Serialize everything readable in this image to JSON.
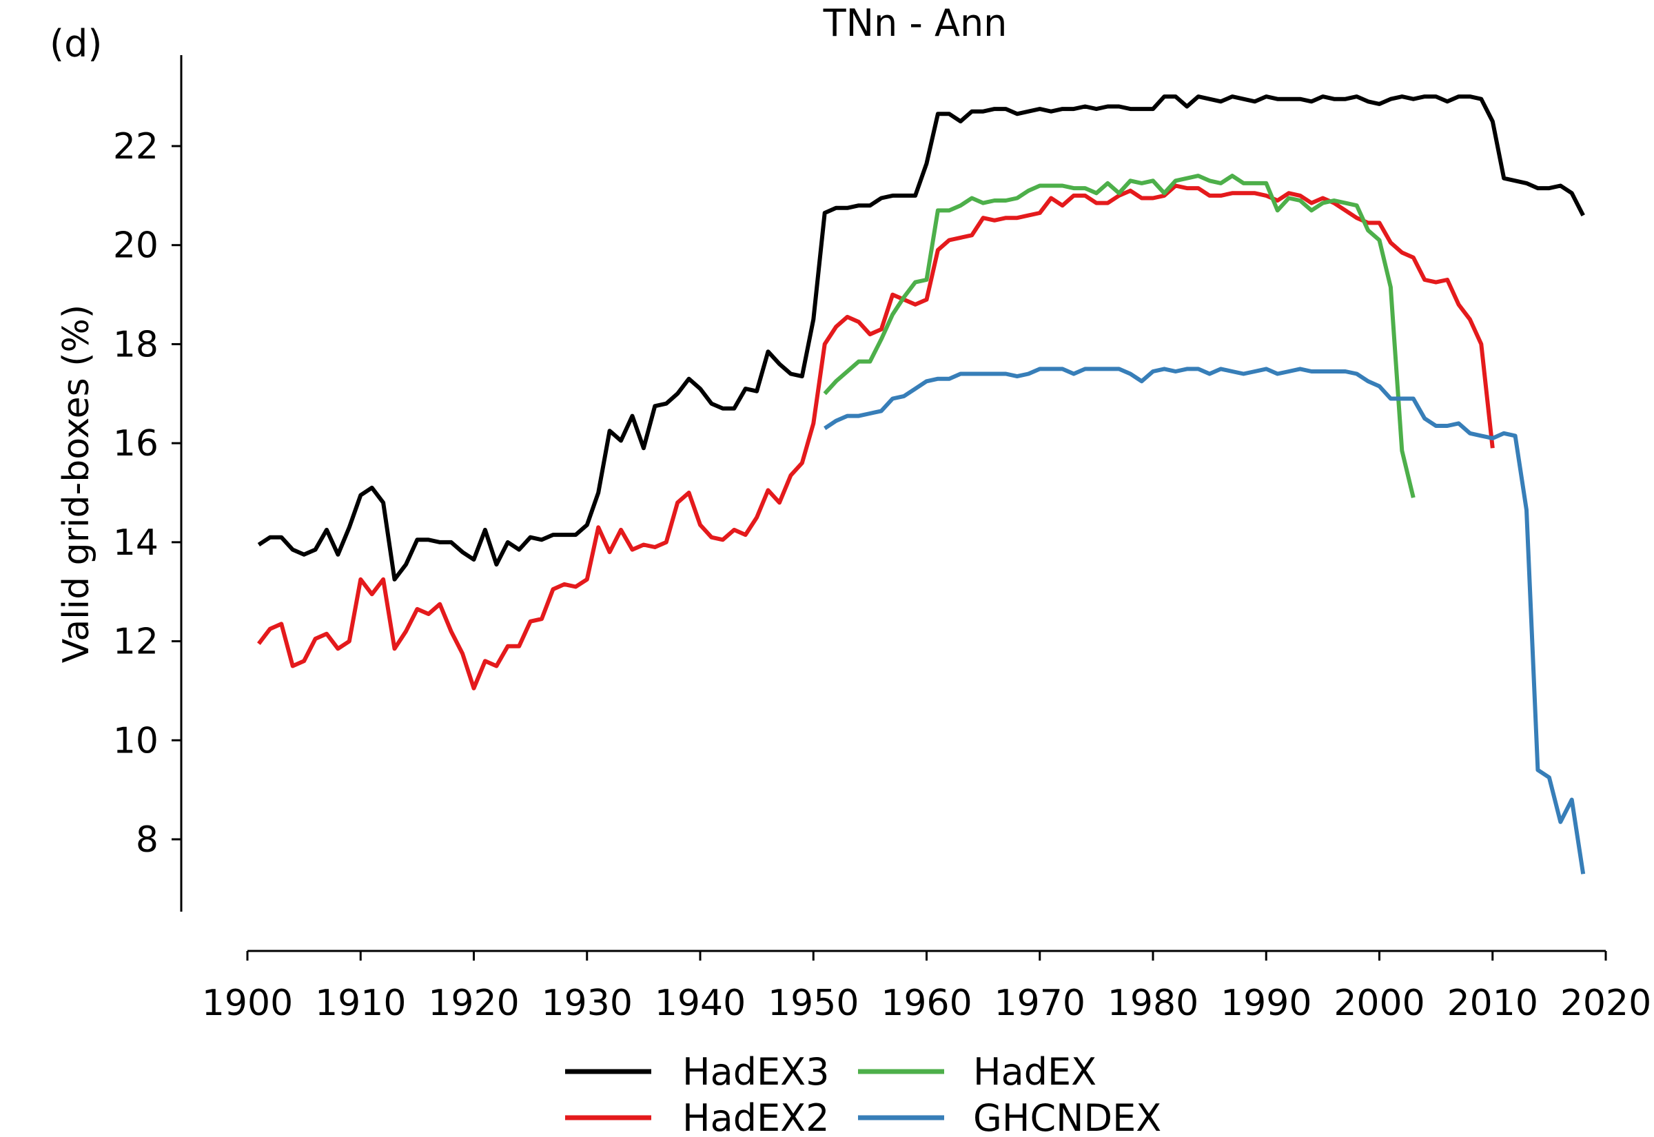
{
  "chart_data": {
    "type": "line",
    "title": "TNn - Ann",
    "panel_label": "(d)",
    "xlabel": "",
    "ylabel": "Valid grid-boxes (%)",
    "xlim": [
      1900,
      2020
    ],
    "ylim": [
      7,
      24.3
    ],
    "xticks": [
      1900,
      1910,
      1920,
      1930,
      1940,
      1950,
      1960,
      1970,
      1980,
      1990,
      2000,
      2010,
      2020
    ],
    "yticks": [
      8,
      10,
      12,
      14,
      16,
      18,
      20,
      22
    ],
    "grid": false,
    "legend_position": "bottom-center",
    "series": [
      {
        "name": "HadEX3",
        "color": "#000000",
        "x": [
          1901,
          1902,
          1903,
          1904,
          1905,
          1906,
          1907,
          1908,
          1909,
          1910,
          1911,
          1912,
          1913,
          1914,
          1915,
          1916,
          1917,
          1918,
          1919,
          1920,
          1921,
          1922,
          1923,
          1924,
          1925,
          1926,
          1927,
          1928,
          1929,
          1930,
          1931,
          1932,
          1933,
          1934,
          1935,
          1936,
          1937,
          1938,
          1939,
          1940,
          1941,
          1942,
          1943,
          1944,
          1945,
          1946,
          1947,
          1948,
          1949,
          1950,
          1951,
          1952,
          1953,
          1954,
          1955,
          1956,
          1957,
          1958,
          1959,
          1960,
          1961,
          1962,
          1963,
          1964,
          1965,
          1966,
          1967,
          1968,
          1969,
          1970,
          1971,
          1972,
          1973,
          1974,
          1975,
          1976,
          1977,
          1978,
          1979,
          1980,
          1981,
          1982,
          1983,
          1984,
          1985,
          1986,
          1987,
          1988,
          1989,
          1990,
          1991,
          1992,
          1993,
          1994,
          1995,
          1996,
          1997,
          1998,
          1999,
          2000,
          2001,
          2002,
          2003,
          2004,
          2005,
          2006,
          2007,
          2008,
          2009,
          2010,
          2011,
          2012,
          2013,
          2014,
          2015,
          2016,
          2017,
          2018
        ],
        "y": [
          13.95,
          14.1,
          14.1,
          13.85,
          13.75,
          13.85,
          14.25,
          13.75,
          14.3,
          14.95,
          15.1,
          14.8,
          13.25,
          13.55,
          14.05,
          14.05,
          14.0,
          14.0,
          13.8,
          13.65,
          14.25,
          13.55,
          14.0,
          13.85,
          14.1,
          14.05,
          14.15,
          14.15,
          14.15,
          14.35,
          15.0,
          16.25,
          16.05,
          16.55,
          15.9,
          16.75,
          16.8,
          17.0,
          17.3,
          17.1,
          16.8,
          16.7,
          16.7,
          17.1,
          17.05,
          17.85,
          17.6,
          17.4,
          17.35,
          18.5,
          20.65,
          20.75,
          20.75,
          20.8,
          20.8,
          20.95,
          21.0,
          21.0,
          21.0,
          21.65,
          22.65,
          22.65,
          22.5,
          22.7,
          22.7,
          22.75,
          22.75,
          22.65,
          22.7,
          22.75,
          22.7,
          22.75,
          22.75,
          22.8,
          22.75,
          22.8,
          22.8,
          22.75,
          22.75,
          22.75,
          23.0,
          23.0,
          22.8,
          23.0,
          22.95,
          22.9,
          23.0,
          22.95,
          22.9,
          23.0,
          22.95,
          22.95,
          22.95,
          22.9,
          23.0,
          22.95,
          22.95,
          23.0,
          22.9,
          22.85,
          22.95,
          23.0,
          22.95,
          23.0,
          23.0,
          22.9,
          23.0,
          23.0,
          22.95,
          22.5,
          21.35,
          21.3,
          21.25,
          21.15,
          21.15,
          21.2,
          21.05,
          20.6
        ]
      },
      {
        "name": "HadEX2",
        "color": "#e41a1c",
        "x": [
          1901,
          1902,
          1903,
          1904,
          1905,
          1906,
          1907,
          1908,
          1909,
          1910,
          1911,
          1912,
          1913,
          1914,
          1915,
          1916,
          1917,
          1918,
          1919,
          1920,
          1921,
          1922,
          1923,
          1924,
          1925,
          1926,
          1927,
          1928,
          1929,
          1930,
          1931,
          1932,
          1933,
          1934,
          1935,
          1936,
          1937,
          1938,
          1939,
          1940,
          1941,
          1942,
          1943,
          1944,
          1945,
          1946,
          1947,
          1948,
          1949,
          1950,
          1951,
          1952,
          1953,
          1954,
          1955,
          1956,
          1957,
          1958,
          1959,
          1960,
          1961,
          1962,
          1963,
          1964,
          1965,
          1966,
          1967,
          1968,
          1969,
          1970,
          1971,
          1972,
          1973,
          1974,
          1975,
          1976,
          1977,
          1978,
          1979,
          1980,
          1981,
          1982,
          1983,
          1984,
          1985,
          1986,
          1987,
          1988,
          1989,
          1990,
          1991,
          1992,
          1993,
          1994,
          1995,
          1996,
          1997,
          1998,
          1999,
          2000,
          2001,
          2002,
          2003,
          2004,
          2005,
          2006,
          2007,
          2008,
          2009,
          2010
        ],
        "y": [
          11.95,
          12.25,
          12.35,
          11.5,
          11.6,
          12.05,
          12.15,
          11.85,
          12.0,
          13.25,
          12.95,
          13.25,
          11.85,
          12.2,
          12.65,
          12.55,
          12.75,
          12.2,
          11.75,
          11.05,
          11.6,
          11.5,
          11.9,
          11.9,
          12.4,
          12.45,
          13.05,
          13.15,
          13.1,
          13.25,
          14.3,
          13.8,
          14.25,
          13.85,
          13.95,
          13.9,
          14.0,
          14.8,
          15.0,
          14.35,
          14.1,
          14.05,
          14.25,
          14.15,
          14.5,
          15.05,
          14.8,
          15.35,
          15.6,
          16.4,
          18.0,
          18.35,
          18.55,
          18.45,
          18.2,
          18.3,
          19.0,
          18.9,
          18.8,
          18.9,
          19.9,
          20.1,
          20.15,
          20.2,
          20.55,
          20.5,
          20.55,
          20.55,
          20.6,
          20.65,
          20.95,
          20.8,
          21.0,
          21.0,
          20.85,
          20.85,
          21.0,
          21.1,
          20.95,
          20.95,
          21.0,
          21.2,
          21.15,
          21.15,
          21.0,
          21.0,
          21.05,
          21.05,
          21.05,
          21.0,
          20.9,
          21.05,
          21.0,
          20.85,
          20.95,
          20.85,
          20.7,
          20.55,
          20.45,
          20.45,
          20.05,
          19.85,
          19.75,
          19.3,
          19.25,
          19.3,
          18.8,
          18.5,
          18.0,
          15.9
        ]
      },
      {
        "name": "HadEX",
        "color": "#4daf4a",
        "x": [
          1951,
          1952,
          1953,
          1954,
          1955,
          1956,
          1957,
          1958,
          1959,
          1960,
          1961,
          1962,
          1963,
          1964,
          1965,
          1966,
          1967,
          1968,
          1969,
          1970,
          1971,
          1972,
          1973,
          1974,
          1975,
          1976,
          1977,
          1978,
          1979,
          1980,
          1981,
          1982,
          1983,
          1984,
          1985,
          1986,
          1987,
          1988,
          1989,
          1990,
          1991,
          1992,
          1993,
          1994,
          1995,
          1996,
          1997,
          1998,
          1999,
          2000,
          2001,
          2002,
          2003
        ],
        "y": [
          17.0,
          17.25,
          17.45,
          17.65,
          17.65,
          18.1,
          18.6,
          18.95,
          19.25,
          19.3,
          20.7,
          20.7,
          20.8,
          20.95,
          20.85,
          20.9,
          20.9,
          20.95,
          21.1,
          21.2,
          21.2,
          21.2,
          21.15,
          21.15,
          21.05,
          21.25,
          21.05,
          21.3,
          21.25,
          21.3,
          21.05,
          21.3,
          21.35,
          21.4,
          21.3,
          21.25,
          21.4,
          21.25,
          21.25,
          21.25,
          20.7,
          20.95,
          20.9,
          20.7,
          20.85,
          20.9,
          20.85,
          20.8,
          20.3,
          20.1,
          19.15,
          15.85,
          14.9
        ]
      },
      {
        "name": "GHCNDEX",
        "color": "#377eb8",
        "x": [
          1951,
          1952,
          1953,
          1954,
          1955,
          1956,
          1957,
          1958,
          1959,
          1960,
          1961,
          1962,
          1963,
          1964,
          1965,
          1966,
          1967,
          1968,
          1969,
          1970,
          1971,
          1972,
          1973,
          1974,
          1975,
          1976,
          1977,
          1978,
          1979,
          1980,
          1981,
          1982,
          1983,
          1984,
          1985,
          1986,
          1987,
          1988,
          1989,
          1990,
          1991,
          1992,
          1993,
          1994,
          1995,
          1996,
          1997,
          1998,
          1999,
          2000,
          2001,
          2002,
          2003,
          2004,
          2005,
          2006,
          2007,
          2008,
          2009,
          2010,
          2011,
          2012,
          2013,
          2014,
          2015,
          2016,
          2017,
          2018
        ],
        "y": [
          16.3,
          16.45,
          16.55,
          16.55,
          16.6,
          16.65,
          16.9,
          16.95,
          17.1,
          17.25,
          17.3,
          17.3,
          17.4,
          17.4,
          17.4,
          17.4,
          17.4,
          17.35,
          17.4,
          17.5,
          17.5,
          17.5,
          17.4,
          17.5,
          17.5,
          17.5,
          17.5,
          17.4,
          17.25,
          17.45,
          17.5,
          17.45,
          17.5,
          17.5,
          17.4,
          17.5,
          17.45,
          17.4,
          17.45,
          17.5,
          17.4,
          17.45,
          17.5,
          17.45,
          17.45,
          17.45,
          17.45,
          17.4,
          17.25,
          17.15,
          16.9,
          16.9,
          16.9,
          16.5,
          16.35,
          16.35,
          16.4,
          16.2,
          16.15,
          16.1,
          16.2,
          16.15,
          14.65,
          9.4,
          9.25,
          8.35,
          8.8,
          7.3
        ]
      }
    ]
  }
}
